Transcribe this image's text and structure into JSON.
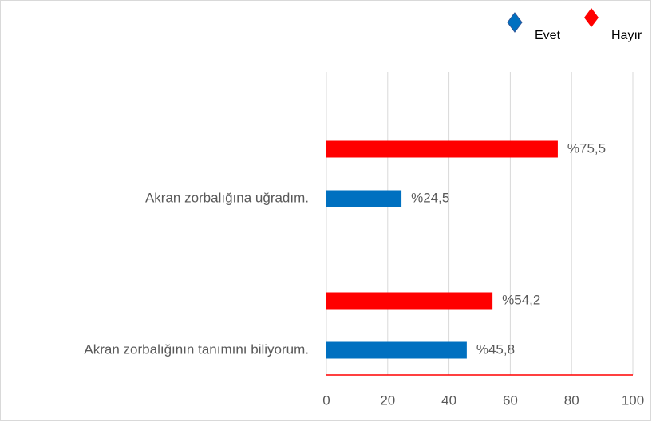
{
  "chart_data": {
    "type": "hbar",
    "categories": [
      "Akran zorbalığına uğradım.",
      "Akran zorbalığının tanımını biliyorum."
    ],
    "series": [
      {
        "name": "Evet",
        "color": "#0070c0",
        "values": [
          24.5,
          45.8
        ],
        "value_labels": [
          "%24,5",
          "%45,8"
        ]
      },
      {
        "name": "Hayır",
        "color": "#ff0000",
        "values": [
          75.5,
          54.2
        ],
        "value_labels": [
          "%75,5",
          "%54,2"
        ]
      }
    ],
    "xlim": [
      0,
      100
    ],
    "xticks": [
      0,
      20,
      40,
      60,
      80,
      100
    ],
    "grid": true,
    "legend": "top-right"
  }
}
